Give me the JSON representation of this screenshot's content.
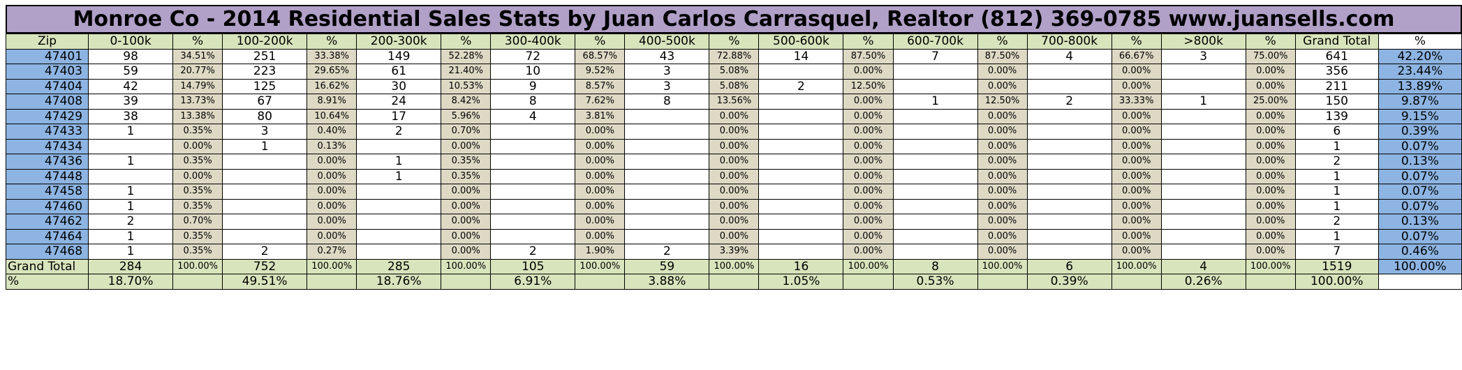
{
  "title": "Monroe Co - 2014 Residential Sales Stats by Juan Carlos Carrasquel, Realtor (812) 369-0785 www.juansells.com",
  "headers": [
    "Zip",
    "0-100k",
    "%",
    "100-200k",
    "%",
    "200-300k",
    "%",
    "300-400k",
    "%",
    "400-500k",
    "%",
    "500-600k",
    "%",
    "600-700k",
    "%",
    "700-800k",
    "%",
    ">800k",
    "%",
    "Grand Total",
    "%"
  ],
  "rows": [
    {
      "zip": "47401",
      "cells": [
        "98",
        "34.51%",
        "251",
        "33.38%",
        "149",
        "52.28%",
        "72",
        "68.57%",
        "43",
        "72.88%",
        "14",
        "87.50%",
        "7",
        "87.50%",
        "4",
        "66.67%",
        "3",
        "75.00%"
      ],
      "total": "641",
      "pct": "42.20%"
    },
    {
      "zip": "47403",
      "cells": [
        "59",
        "20.77%",
        "223",
        "29.65%",
        "61",
        "21.40%",
        "10",
        "9.52%",
        "3",
        "5.08%",
        "",
        "0.00%",
        "",
        "0.00%",
        "",
        "0.00%",
        "",
        "0.00%"
      ],
      "total": "356",
      "pct": "23.44%"
    },
    {
      "zip": "47404",
      "cells": [
        "42",
        "14.79%",
        "125",
        "16.62%",
        "30",
        "10.53%",
        "9",
        "8.57%",
        "3",
        "5.08%",
        "2",
        "12.50%",
        "",
        "0.00%",
        "",
        "0.00%",
        "",
        "0.00%"
      ],
      "total": "211",
      "pct": "13.89%"
    },
    {
      "zip": "47408",
      "cells": [
        "39",
        "13.73%",
        "67",
        "8.91%",
        "24",
        "8.42%",
        "8",
        "7.62%",
        "8",
        "13.56%",
        "",
        "0.00%",
        "1",
        "12.50%",
        "2",
        "33.33%",
        "1",
        "25.00%"
      ],
      "total": "150",
      "pct": "9.87%"
    },
    {
      "zip": "47429",
      "cells": [
        "38",
        "13.38%",
        "80",
        "10.64%",
        "17",
        "5.96%",
        "4",
        "3.81%",
        "",
        "0.00%",
        "",
        "0.00%",
        "",
        "0.00%",
        "",
        "0.00%",
        "",
        "0.00%"
      ],
      "total": "139",
      "pct": "9.15%"
    },
    {
      "zip": "47433",
      "cells": [
        "1",
        "0.35%",
        "3",
        "0.40%",
        "2",
        "0.70%",
        "",
        "0.00%",
        "",
        "0.00%",
        "",
        "0.00%",
        "",
        "0.00%",
        "",
        "0.00%",
        "",
        "0.00%"
      ],
      "total": "6",
      "pct": "0.39%"
    },
    {
      "zip": "47434",
      "cells": [
        "",
        "0.00%",
        "1",
        "0.13%",
        "",
        "0.00%",
        "",
        "0.00%",
        "",
        "0.00%",
        "",
        "0.00%",
        "",
        "0.00%",
        "",
        "0.00%",
        "",
        "0.00%"
      ],
      "total": "1",
      "pct": "0.07%"
    },
    {
      "zip": "47436",
      "cells": [
        "1",
        "0.35%",
        "",
        "0.00%",
        "1",
        "0.35%",
        "",
        "0.00%",
        "",
        "0.00%",
        "",
        "0.00%",
        "",
        "0.00%",
        "",
        "0.00%",
        "",
        "0.00%"
      ],
      "total": "2",
      "pct": "0.13%"
    },
    {
      "zip": "47448",
      "cells": [
        "",
        "0.00%",
        "",
        "0.00%",
        "1",
        "0.35%",
        "",
        "0.00%",
        "",
        "0.00%",
        "",
        "0.00%",
        "",
        "0.00%",
        "",
        "0.00%",
        "",
        "0.00%"
      ],
      "total": "1",
      "pct": "0.07%"
    },
    {
      "zip": "47458",
      "cells": [
        "1",
        "0.35%",
        "",
        "0.00%",
        "",
        "0.00%",
        "",
        "0.00%",
        "",
        "0.00%",
        "",
        "0.00%",
        "",
        "0.00%",
        "",
        "0.00%",
        "",
        "0.00%"
      ],
      "total": "1",
      "pct": "0.07%"
    },
    {
      "zip": "47460",
      "cells": [
        "1",
        "0.35%",
        "",
        "0.00%",
        "",
        "0.00%",
        "",
        "0.00%",
        "",
        "0.00%",
        "",
        "0.00%",
        "",
        "0.00%",
        "",
        "0.00%",
        "",
        "0.00%"
      ],
      "total": "1",
      "pct": "0.07%"
    },
    {
      "zip": "47462",
      "cells": [
        "2",
        "0.70%",
        "",
        "0.00%",
        "",
        "0.00%",
        "",
        "0.00%",
        "",
        "0.00%",
        "",
        "0.00%",
        "",
        "0.00%",
        "",
        "0.00%",
        "",
        "0.00%"
      ],
      "total": "2",
      "pct": "0.13%"
    },
    {
      "zip": "47464",
      "cells": [
        "1",
        "0.35%",
        "",
        "0.00%",
        "",
        "0.00%",
        "",
        "0.00%",
        "",
        "0.00%",
        "",
        "0.00%",
        "",
        "0.00%",
        "",
        "0.00%",
        "",
        "0.00%"
      ],
      "total": "1",
      "pct": "0.07%"
    },
    {
      "zip": "47468",
      "cells": [
        "1",
        "0.35%",
        "2",
        "0.27%",
        "",
        "0.00%",
        "2",
        "1.90%",
        "2",
        "3.39%",
        "",
        "0.00%",
        "",
        "0.00%",
        "",
        "0.00%",
        "",
        "0.00%"
      ],
      "total": "7",
      "pct": "0.46%"
    }
  ],
  "grand_total_row": {
    "label": "Grand Total",
    "cells": [
      "284",
      "100.00%",
      "752",
      "100.00%",
      "285",
      "100.00%",
      "105",
      "100.00%",
      "59",
      "100.00%",
      "16",
      "100.00%",
      "8",
      "100.00%",
      "6",
      "100.00%",
      "4",
      "100.00%"
    ],
    "total": "1519",
    "pct": "100.00%"
  },
  "percent_row": {
    "label": "%",
    "values": [
      "18.70%",
      "49.51%",
      "18.76%",
      "6.91%",
      "3.88%",
      "1.05%",
      "0.53%",
      "0.39%",
      "0.26%"
    ],
    "total": "100.00%"
  }
}
